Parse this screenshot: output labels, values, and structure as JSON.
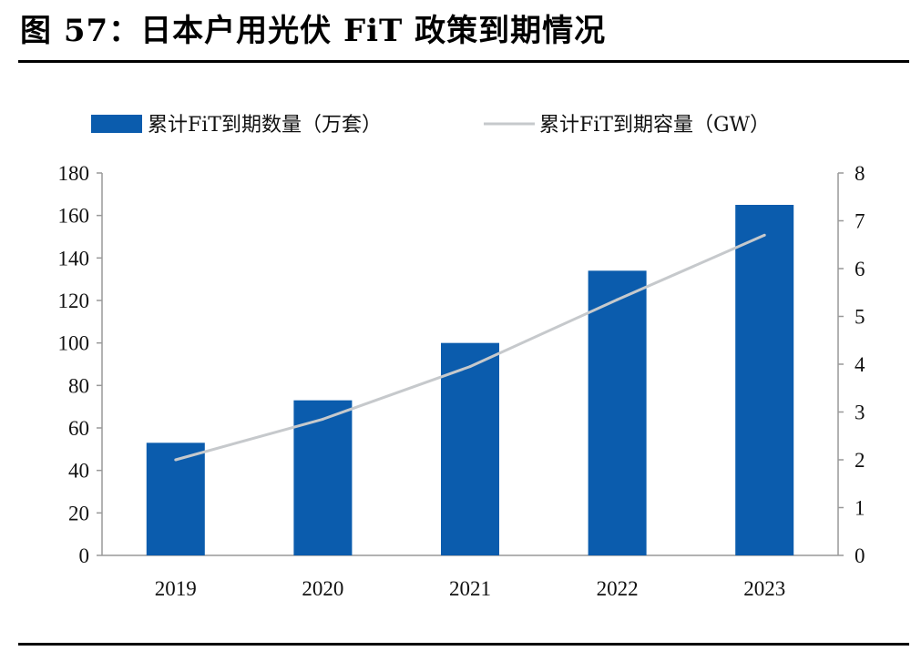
{
  "figure": {
    "title": "图 57：日本户用光伏 FiT 政策到期情况"
  },
  "colors": {
    "bar": "#0b5cad",
    "line": "#c6c9cc",
    "axis": "#999999"
  },
  "chart_data": {
    "type": "bar",
    "categories": [
      "2019",
      "2020",
      "2021",
      "2022",
      "2023"
    ],
    "series": [
      {
        "name": "累计FiT到期数量（万套）",
        "type": "bar",
        "axis": "left",
        "values": [
          53,
          73,
          100,
          134,
          165
        ]
      },
      {
        "name": "累计FiT到期容量（GW）",
        "type": "line",
        "axis": "right",
        "values": [
          2.0,
          2.85,
          3.95,
          5.35,
          6.7
        ]
      }
    ],
    "y_left": {
      "lim": [
        0,
        180
      ],
      "ticks": [
        "0",
        "20",
        "40",
        "60",
        "80",
        "100",
        "120",
        "140",
        "160",
        "180"
      ]
    },
    "y_right": {
      "lim": [
        0,
        8
      ],
      "ticks": [
        "0",
        "1",
        "2",
        "3",
        "4",
        "5",
        "6",
        "7",
        "8"
      ]
    },
    "legend_position": "top",
    "grid": false
  }
}
